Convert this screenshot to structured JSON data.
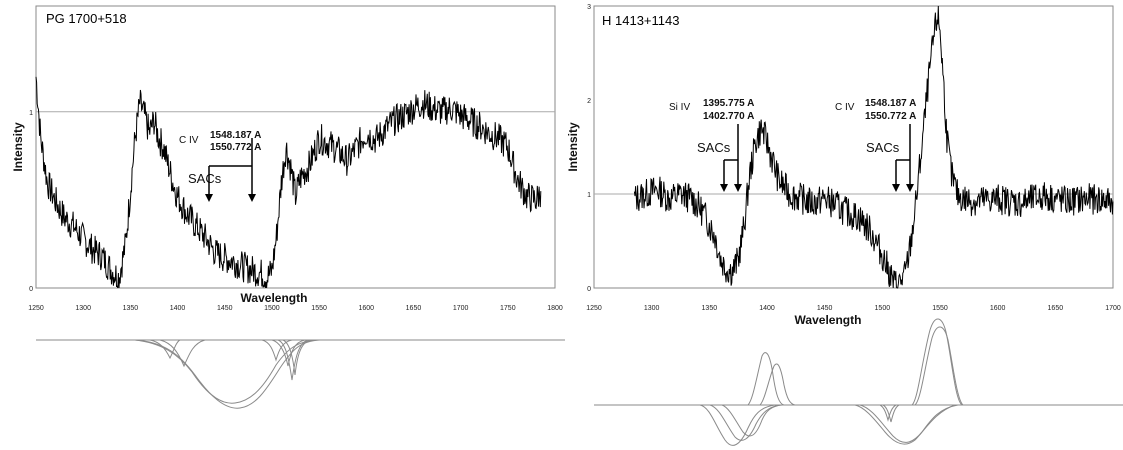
{
  "chart_data": [
    {
      "type": "line",
      "title": "PG 1700+518",
      "xlabel": "Wavelength",
      "ylabel": "Intensity",
      "xlim": [
        1250,
        1800
      ],
      "ylim": [
        0,
        1.6
      ],
      "x_ticks": [
        "1250",
        "1300",
        "1350",
        "1400",
        "1450",
        "1500",
        "1550",
        "1600",
        "1650",
        "1700",
        "1750",
        "1800"
      ],
      "y_ticks": [
        "0",
        "1"
      ],
      "continuum_level": 1,
      "series": [
        {
          "x": [
            1250,
            1255,
            1262,
            1270,
            1280,
            1290,
            1300,
            1310,
            1320,
            1330,
            1338,
            1345,
            1350,
            1355,
            1360,
            1365,
            1370,
            1375,
            1380,
            1385,
            1390,
            1395,
            1400,
            1410,
            1420,
            1430,
            1440,
            1450,
            1460,
            1470,
            1480,
            1490,
            1495,
            1500,
            1505,
            1510,
            1515,
            1520,
            1525,
            1530,
            1540,
            1550,
            1560,
            1570,
            1580,
            1590,
            1600,
            1610,
            1620,
            1630,
            1640,
            1650,
            1660,
            1670,
            1680,
            1690,
            1700,
            1710,
            1720,
            1730,
            1740,
            1750,
            1760,
            1770,
            1780,
            1785
          ],
          "y": [
            1.2,
            0.85,
            0.6,
            0.5,
            0.4,
            0.35,
            0.28,
            0.22,
            0.18,
            0.1,
            0.06,
            0.25,
            0.55,
            0.85,
            1.05,
            0.98,
            0.88,
            0.95,
            0.85,
            0.8,
            0.7,
            0.6,
            0.52,
            0.42,
            0.35,
            0.28,
            0.2,
            0.17,
            0.15,
            0.12,
            0.1,
            0.08,
            0.06,
            0.1,
            0.3,
            0.6,
            0.8,
            0.68,
            0.52,
            0.62,
            0.7,
            0.85,
            0.82,
            0.78,
            0.72,
            0.8,
            0.88,
            0.84,
            0.9,
            0.95,
            0.98,
            1.02,
            1.05,
            1.02,
            1.0,
            1.02,
            0.98,
            0.95,
            0.92,
            0.88,
            0.85,
            0.8,
            0.62,
            0.52,
            0.5,
            0.55
          ]
        }
      ],
      "annotations": {
        "ion": "C IV",
        "wavelengths": [
          "1548.187 A",
          "1550.772 A"
        ],
        "sacs_label": "SACs",
        "sacs_arrows_x": [
          1432,
          1478
        ]
      }
    },
    {
      "type": "line",
      "title": "H 1413+1143",
      "xlabel": "Wavelength",
      "ylabel": "Intensity",
      "xlim": [
        1250,
        1700
      ],
      "ylim": [
        0,
        3
      ],
      "x_ticks": [
        "1250",
        "1300",
        "1350",
        "1400",
        "1450",
        "1500",
        "1550",
        "1600",
        "1650",
        "1700"
      ],
      "y_ticks": [
        "0",
        "1",
        "2",
        "3"
      ],
      "continuum_level": 1,
      "series": [
        {
          "x": [
            1285,
            1295,
            1305,
            1315,
            1325,
            1335,
            1345,
            1355,
            1360,
            1365,
            1370,
            1375,
            1380,
            1385,
            1390,
            1395,
            1400,
            1405,
            1410,
            1420,
            1430,
            1440,
            1450,
            1460,
            1470,
            1480,
            1490,
            1500,
            1505,
            1510,
            1515,
            1520,
            1525,
            1530,
            1535,
            1540,
            1545,
            1548,
            1550,
            1553,
            1556,
            1560,
            1565,
            1570,
            1580,
            1600,
            1620,
            1640,
            1660,
            1680,
            1700
          ],
          "y": [
            0.95,
            1.0,
            1.05,
            0.95,
            1.0,
            0.95,
            0.8,
            0.55,
            0.3,
            0.2,
            0.18,
            0.3,
            0.65,
            1.2,
            1.55,
            1.7,
            1.55,
            1.35,
            1.15,
            1.0,
            0.95,
            0.9,
            0.95,
            0.88,
            0.8,
            0.75,
            0.6,
            0.35,
            0.2,
            0.05,
            0.05,
            0.15,
            0.5,
            1.0,
            1.6,
            2.2,
            2.7,
            2.9,
            2.75,
            2.2,
            1.6,
            1.2,
            1.0,
            0.95,
            0.92,
            0.95,
            0.9,
            0.98,
            0.92,
            0.95,
            0.92
          ]
        }
      ],
      "annotations": [
        {
          "ion": "Si IV",
          "wavelengths": [
            "1395.775 A",
            "1402.770 A"
          ],
          "sacs_label": "SACs",
          "sacs_arrows_x": [
            1362,
            1376
          ]
        },
        {
          "ion": "C IV",
          "wavelengths": [
            "1548.187 A",
            "1550.772 A"
          ],
          "sacs_label": "SACs",
          "sacs_arrows_x": [
            1512,
            1524
          ]
        }
      ]
    }
  ]
}
